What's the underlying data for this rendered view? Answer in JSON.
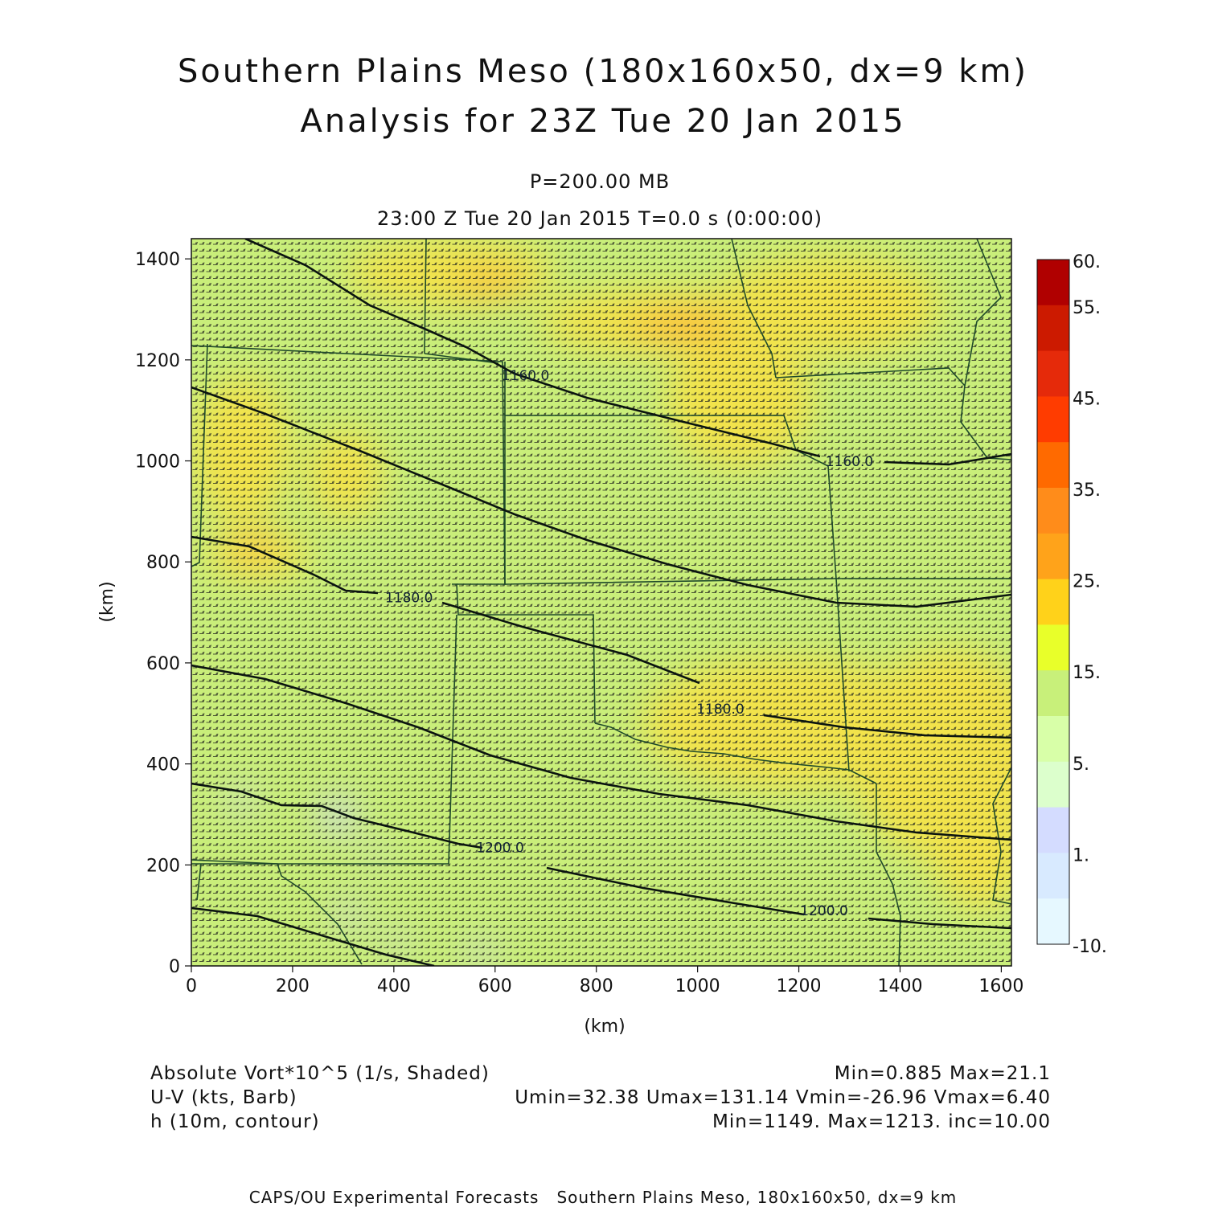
{
  "title": {
    "line1": "Southern Plains Meso (180x160x50, dx=9 km)",
    "line2": "Analysis for 23Z Tue 20 Jan 2015"
  },
  "subtitle": {
    "level": "P=200.00 MB",
    "time": "23:00 Z Tue 20 Jan 2015    T=0.0 s (0:00:00)"
  },
  "map_data": {
    "x_axis": {
      "label": "(km)",
      "ticks": [
        0,
        200,
        400,
        600,
        800,
        1000,
        1200,
        1400,
        1600
      ],
      "range": [
        0,
        1620
      ]
    },
    "y_axis": {
      "label": "(km)",
      "ticks": [
        0,
        200,
        400,
        600,
        800,
        1000,
        1200,
        1400
      ],
      "range": [
        0,
        1440
      ]
    },
    "contour_labels": [
      {
        "text": "1160.0",
        "x": 660,
        "y": 1160
      },
      {
        "text": "1160.0",
        "x": 1300,
        "y": 990
      },
      {
        "text": "1180.0",
        "x": 430,
        "y": 720
      },
      {
        "text": "1180.0",
        "x": 1045,
        "y": 500
      },
      {
        "text": "1200.0",
        "x": 610,
        "y": 225
      },
      {
        "text": "1200.0",
        "x": 1250,
        "y": 100
      }
    ],
    "colorbar": {
      "labels": [
        "60.",
        "55.",
        "45.",
        "35.",
        "25.",
        "15.",
        "5.",
        "1.",
        "-10."
      ],
      "colors": [
        "#b00000",
        "#cc1a00",
        "#e52a0a",
        "#ff3c00",
        "#ff6a00",
        "#ff8c1a",
        "#ffa31a",
        "#ffd21a",
        "#e8ff2a",
        "#c8f07a",
        "#d8ffa8",
        "#dcffcc",
        "#d4dcff",
        "#d8eaff",
        "#e6f8ff"
      ]
    },
    "field_colors": {
      "background": "#c9ee7a",
      "high": "#f2e34c",
      "peak": "#fbb93b",
      "low": "#ccd4f2"
    }
  },
  "legend": {
    "left": [
      "Absolute Vort*10^5 (1/s, Shaded)",
      "U-V (kts, Barb)",
      "h (10m, contour)"
    ],
    "right": [
      "Min=0.885  Max=21.1",
      "Umin=32.38  Umax=131.14  Vmin=-26.96  Vmax=6.40",
      "Min=1149.  Max=1213.  inc=10.00"
    ]
  },
  "footer": "CAPS/OU Experimental Forecasts   Southern Plains Meso, 180x160x50, dx=9 km"
}
